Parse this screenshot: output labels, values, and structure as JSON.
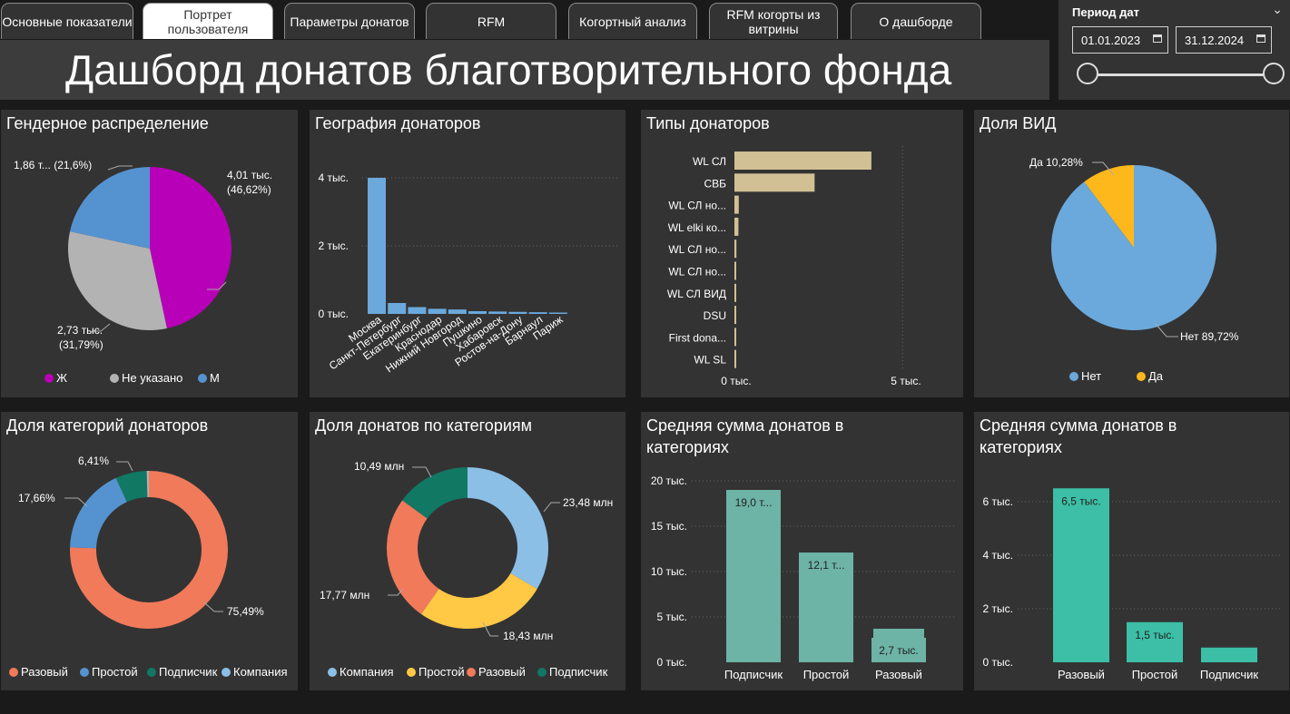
{
  "tabs": [
    {
      "label": "Основные показатели",
      "active": false
    },
    {
      "label": "Портрет пользователя",
      "active": true
    },
    {
      "label": "Параметры донатов",
      "active": false
    },
    {
      "label": "RFM",
      "active": false
    },
    {
      "label": "Когортный анализ",
      "active": false
    },
    {
      "label": "RFM когорты из витрины",
      "active": false
    },
    {
      "label": "О дашборде",
      "active": false
    }
  ],
  "title": "Дашборд донатов благотворительного фонда",
  "date_filter": {
    "label": "Период дат",
    "start": "01.01.2023",
    "end": "31.12.2024"
  },
  "gender": {
    "title": "Гендерное распределение",
    "legend": [
      "Ж",
      "Не указано",
      "М"
    ],
    "labels": {
      "zh": [
        "4,01 тыс.",
        "(46,62%)"
      ],
      "ne": [
        "2,73 тыс.",
        "(31,79%)"
      ],
      "m": "1,86 т... (21,6%)"
    }
  },
  "geo": {
    "title": "География донаторов",
    "ticks": [
      "4 тыс.",
      "2 тыс.",
      "0 тыс."
    ]
  },
  "types": {
    "title": "Типы донаторов",
    "ticks": [
      "0 тыс.",
      "5 тыс."
    ]
  },
  "vid": {
    "title": "Доля ВИД",
    "labels": {
      "yes": "Да 10,28%",
      "no": "Нет 89,72%"
    },
    "legend": [
      "Нет",
      "Да"
    ]
  },
  "cat_share": {
    "title": "Доля категорий донаторов",
    "labels": {
      "raz": "75,49%",
      "pro": "17,66%",
      "pod": "6,41%"
    },
    "legend": [
      "Разовый",
      "Простой",
      "Подписчик",
      "Компания"
    ]
  },
  "don_share": {
    "title": "Доля донатов по категориям",
    "labels": {
      "komp": "23,48 млн",
      "pro": "18,43 млн",
      "raz": "17,77 млн",
      "pod": "10,49 млн"
    },
    "legend": [
      "Компания",
      "Простой",
      "Разовый",
      "Подписчик"
    ]
  },
  "avg1": {
    "title": "Средняя сумма донатов в категориях",
    "ticks": [
      "20 тыс.",
      "15 тыс.",
      "10 тыс.",
      "5 тыс.",
      "0 тыс."
    ],
    "bar_labels": [
      "19,0 т...",
      "12,1 т...",
      "2,7 тыс."
    ]
  },
  "avg2": {
    "title": "Средняя сумма донатов в категориях",
    "ticks": [
      "6 тыс.",
      "4 тыс.",
      "2 тыс.",
      "0 тыс."
    ],
    "bar_labels": [
      "6,5 тыс.",
      "1,5 тыс."
    ]
  },
  "colors": {
    "magenta": "#b700b7",
    "gray": "#b3b3b3",
    "blue": "#5593d0",
    "lightblue": "#6ba9dc",
    "gold": "#ffb81c",
    "orange": "#f07a5a",
    "teal": "#117864",
    "tealbar": "#6db3a6",
    "green": "#3cbfa6",
    "tan": "#d2c095",
    "yellow": "#ffc845",
    "lb2": "#8bbfe6"
  },
  "chart_data": [
    {
      "type": "pie",
      "title": "Гендерное распределение",
      "categories": [
        "Ж",
        "Не указано",
        "М"
      ],
      "values": [
        4010,
        2730,
        1860
      ],
      "percent": [
        46.62,
        31.79,
        21.6
      ]
    },
    {
      "type": "bar",
      "title": "География донаторов",
      "categories": [
        "Москва",
        "Санкт-Петербург",
        "Екатеринбург",
        "Краснодар",
        "Нижний Новгород",
        "Пушкино",
        "Хабаровск",
        "Ростов-на-Дону",
        "Барнаул",
        "Париж"
      ],
      "values": [
        4000,
        320,
        200,
        150,
        130,
        80,
        70,
        60,
        50,
        40
      ],
      "ylim": [
        0,
        4500
      ]
    },
    {
      "type": "bar",
      "title": "Типы донаторов",
      "orientation": "horizontal",
      "categories": [
        "WL СЛ",
        "СВБ",
        "WL СЛ но...",
        "WL elki ко...",
        "WL СЛ но...",
        "WL СЛ но...",
        "WL СЛ ВИД",
        "DSU",
        "First dona...",
        "WL SL"
      ],
      "values": [
        4100,
        2400,
        130,
        120,
        60,
        50,
        40,
        30,
        20,
        15
      ],
      "xlim": [
        0,
        5000
      ]
    },
    {
      "type": "pie",
      "title": "Доля ВИД",
      "categories": [
        "Нет",
        "Да"
      ],
      "values": [
        89.72,
        10.28
      ]
    },
    {
      "type": "pie",
      "title": "Доля категорий донаторов",
      "donut": true,
      "categories": [
        "Разовый",
        "Простой",
        "Подписчик",
        "Компания"
      ],
      "values": [
        75.49,
        17.66,
        6.41,
        0.44
      ]
    },
    {
      "type": "pie",
      "title": "Доля донатов по категориям",
      "donut": true,
      "categories": [
        "Компания",
        "Простой",
        "Разовый",
        "Подписчик"
      ],
      "values": [
        23.48,
        18.43,
        17.77,
        10.49
      ]
    },
    {
      "type": "bar",
      "title": "Средняя сумма донатов в категориях",
      "categories": [
        "Подписчик",
        "Простой",
        "Разовый"
      ],
      "values": [
        19000,
        12100,
        2700
      ],
      "ylim": [
        0,
        21500
      ]
    },
    {
      "type": "bar",
      "title": "Средняя сумма донатов в категориях",
      "categories": [
        "Разовый",
        "Простой",
        "Подписчик"
      ],
      "values": [
        6500,
        1500,
        550
      ],
      "ylim": [
        0,
        7000
      ]
    }
  ]
}
